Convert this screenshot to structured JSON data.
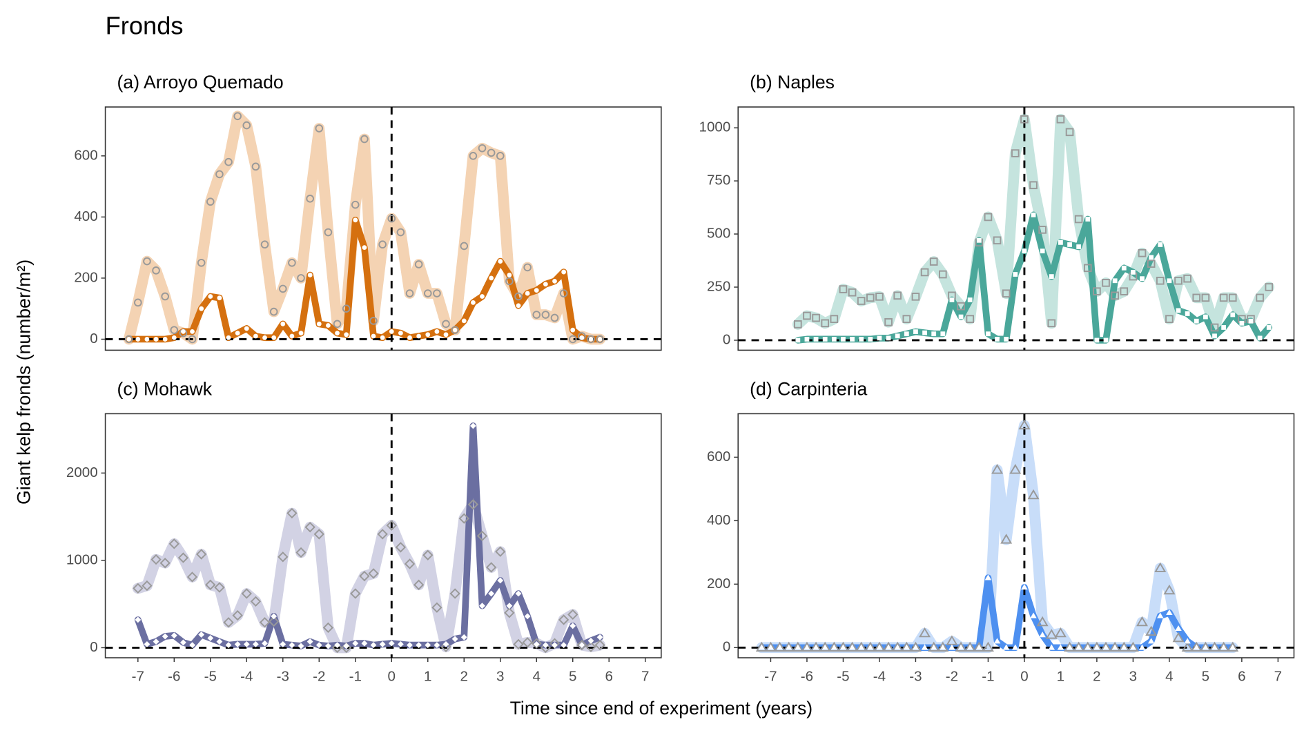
{
  "title": "Fronds",
  "y_label": "Giant kelp fronds (number/m²)",
  "x_label": "Time since end of experiment (years)",
  "chart_data": [
    {
      "type": "line",
      "title": "(a) Arroyo Quemado",
      "marker": "circle",
      "x": [
        -7.25,
        -7,
        -6.75,
        -6.5,
        -6.25,
        -6,
        -5.75,
        -5.5,
        -5.25,
        -5,
        -4.75,
        -4.5,
        -4.25,
        -4,
        -3.75,
        -3.5,
        -3.25,
        -3,
        -2.75,
        -2.5,
        -2.25,
        -2,
        -1.75,
        -1.5,
        -1.25,
        -1,
        -0.75,
        -0.5,
        -0.25,
        0,
        0.25,
        0.5,
        0.75,
        1,
        1.25,
        1.5,
        1.75,
        2,
        2.25,
        2.5,
        2.75,
        3,
        3.25,
        3.5,
        3.75,
        4,
        4.25,
        4.5,
        4.75,
        5,
        5.25,
        5.5,
        5.75
      ],
      "series": [
        {
          "color": "#f4d3b3",
          "values": [
            0,
            120,
            255,
            225,
            140,
            30,
            20,
            0,
            250,
            450,
            540,
            580,
            730,
            700,
            565,
            310,
            90,
            165,
            250,
            200,
            460,
            690,
            350,
            50,
            100,
            440,
            655,
            60,
            310,
            395,
            350,
            150,
            245,
            150,
            150,
            50,
            30,
            305,
            600,
            625,
            610,
            600,
            190,
            140,
            235,
            80,
            80,
            70,
            150,
            0,
            10,
            0,
            0
          ]
        },
        {
          "color": "#d5700f",
          "values": [
            0,
            0,
            0,
            0,
            0,
            5,
            25,
            25,
            100,
            140,
            135,
            5,
            20,
            35,
            10,
            5,
            5,
            50,
            10,
            20,
            210,
            50,
            45,
            20,
            15,
            390,
            300,
            10,
            5,
            25,
            20,
            5,
            10,
            15,
            25,
            15,
            30,
            60,
            120,
            140,
            200,
            255,
            210,
            110,
            150,
            160,
            180,
            190,
            220,
            30,
            5,
            0,
            0
          ]
        }
      ],
      "xlim": [
        -7.9,
        7.44
      ],
      "ylim": [
        -36,
        760
      ],
      "yticks": [
        0,
        200,
        400,
        600
      ],
      "hline": 0,
      "vline": 0
    },
    {
      "type": "line",
      "title": "(b) Naples",
      "marker": "square",
      "x": [
        -6.25,
        -6,
        -5.75,
        -5.5,
        -5.25,
        -5,
        -4.75,
        -4.5,
        -4.25,
        -4,
        -3.75,
        -3.5,
        -3.25,
        -3,
        -2.75,
        -2.5,
        -2.25,
        -2,
        -1.75,
        -1.5,
        -1.25,
        -1,
        -0.75,
        -0.5,
        -0.25,
        0,
        0.25,
        0.5,
        0.75,
        1,
        1.25,
        1.5,
        1.75,
        2,
        2.25,
        2.5,
        2.75,
        3,
        3.25,
        3.5,
        3.75,
        4,
        4.25,
        4.5,
        4.75,
        5,
        5.25,
        5.5,
        5.75,
        6,
        6.25,
        6.5,
        6.75
      ],
      "series": [
        {
          "color": "#c5e4de",
          "values": [
            75,
            115,
            105,
            80,
            100,
            240,
            225,
            185,
            200,
            205,
            85,
            210,
            100,
            205,
            320,
            370,
            310,
            210,
            160,
            100,
            460,
            580,
            470,
            220,
            880,
            1040,
            730,
            520,
            80,
            1040,
            980,
            570,
            340,
            230,
            270,
            210,
            230,
            300,
            410,
            360,
            280,
            100,
            280,
            290,
            200,
            200,
            60,
            200,
            200,
            100,
            100,
            200,
            250
          ]
        },
        {
          "color": "#4aa79a",
          "values": [
            0,
            5,
            5,
            5,
            5,
            5,
            5,
            5,
            5,
            10,
            10,
            20,
            30,
            40,
            35,
            30,
            30,
            190,
            110,
            190,
            470,
            30,
            5,
            5,
            310,
            420,
            590,
            420,
            300,
            460,
            450,
            440,
            570,
            0,
            0,
            280,
            340,
            320,
            290,
            390,
            450,
            280,
            140,
            125,
            90,
            110,
            20,
            60,
            120,
            80,
            90,
            10,
            60
          ]
        }
      ],
      "xlim": [
        -7.9,
        7.44
      ],
      "ylim": [
        -47,
        1098
      ],
      "yticks": [
        0,
        250,
        500,
        750,
        1000
      ],
      "hline": 0,
      "vline": 0
    },
    {
      "type": "line",
      "title": "(c) Mohawk",
      "marker": "diamond",
      "x": [
        -7,
        -6.75,
        -6.5,
        -6.25,
        -6,
        -5.75,
        -5.5,
        -5.25,
        -5,
        -4.75,
        -4.5,
        -4.25,
        -4,
        -3.75,
        -3.5,
        -3.25,
        -3,
        -2.75,
        -2.5,
        -2.25,
        -2,
        -1.75,
        -1.5,
        -1.25,
        -1,
        -0.75,
        -0.5,
        -0.25,
        0,
        0.25,
        0.5,
        0.75,
        1,
        1.25,
        1.5,
        1.75,
        2,
        2.25,
        2.5,
        2.75,
        3,
        3.25,
        3.5,
        3.75,
        4,
        4.25,
        4.5,
        4.75,
        5,
        5.25,
        5.5,
        5.75
      ],
      "series": [
        {
          "color": "#d2d2e4",
          "values": [
            680,
            710,
            1010,
            970,
            1190,
            1030,
            810,
            1070,
            720,
            690,
            290,
            370,
            620,
            530,
            290,
            300,
            1040,
            1540,
            1090,
            1380,
            1300,
            230,
            0,
            0,
            620,
            820,
            850,
            1300,
            1400,
            1150,
            960,
            720,
            1060,
            460,
            10,
            620,
            1480,
            1640,
            1280,
            920,
            1100,
            400,
            40,
            60,
            50,
            0,
            50,
            320,
            380,
            30,
            10,
            30
          ]
        },
        {
          "color": "#6b6fa1",
          "values": [
            320,
            40,
            70,
            130,
            140,
            60,
            30,
            150,
            110,
            70,
            30,
            40,
            40,
            40,
            50,
            360,
            40,
            30,
            20,
            70,
            30,
            20,
            30,
            20,
            50,
            50,
            30,
            40,
            50,
            40,
            30,
            30,
            30,
            30,
            40,
            100,
            120,
            2540,
            480,
            620,
            770,
            480,
            620,
            360,
            40,
            30,
            30,
            30,
            250,
            30,
            80,
            120
          ]
        }
      ],
      "xlim": [
        -7.9,
        7.44
      ],
      "ylim": [
        -115,
        2679
      ],
      "yticks": [
        0,
        1000,
        2000
      ],
      "hline": 0,
      "vline": 0,
      "xticks": [
        -7,
        -6,
        -5,
        -4,
        -3,
        -2,
        -1,
        0,
        1,
        2,
        3,
        4,
        5,
        6,
        7
      ]
    },
    {
      "type": "line",
      "title": "(d) Carpinteria",
      "marker": "triangle",
      "x": [
        -7.25,
        -7,
        -6.75,
        -6.5,
        -6.25,
        -6,
        -5.75,
        -5.5,
        -5.25,
        -5,
        -4.75,
        -4.5,
        -4.25,
        -4,
        -3.75,
        -3.5,
        -3.25,
        -3,
        -2.75,
        -2.5,
        -2.25,
        -2,
        -1.75,
        -1.5,
        -1.25,
        -1,
        -0.75,
        -0.5,
        -0.25,
        0,
        0.25,
        0.5,
        0.75,
        1,
        1.25,
        1.5,
        1.75,
        2,
        2.25,
        2.5,
        2.75,
        3,
        3.25,
        3.5,
        3.75,
        4,
        4.25,
        4.5,
        4.75,
        5,
        5.25,
        5.5,
        5.75
      ],
      "series": [
        {
          "color": "#c8ddf9",
          "values": [
            0,
            0,
            0,
            0,
            0,
            0,
            0,
            0,
            0,
            0,
            0,
            0,
            0,
            0,
            0,
            0,
            0,
            0,
            45,
            0,
            0,
            20,
            0,
            0,
            0,
            0,
            560,
            340,
            560,
            700,
            480,
            80,
            40,
            45,
            0,
            0,
            0,
            0,
            0,
            0,
            0,
            0,
            80,
            50,
            250,
            180,
            30,
            0,
            0,
            0,
            0,
            0,
            0
          ]
        },
        {
          "color": "#4e90f0",
          "values": [
            0,
            0,
            0,
            0,
            0,
            0,
            0,
            0,
            0,
            0,
            0,
            0,
            0,
            0,
            0,
            0,
            0,
            0,
            0,
            0,
            0,
            0,
            0,
            0,
            0,
            220,
            20,
            0,
            0,
            190,
            100,
            40,
            0,
            0,
            0,
            0,
            0,
            0,
            0,
            0,
            0,
            0,
            0,
            20,
            100,
            110,
            60,
            20,
            0,
            0,
            0,
            0,
            0
          ]
        }
      ],
      "xlim": [
        -7.9,
        7.44
      ],
      "ylim": [
        -32,
        737
      ],
      "yticks": [
        0,
        200,
        400,
        600
      ],
      "hline": 0,
      "vline": 0,
      "xticks": [
        -7,
        -6,
        -5,
        -4,
        -3,
        -2,
        -1,
        0,
        1,
        2,
        3,
        4,
        5,
        6,
        7
      ]
    }
  ]
}
